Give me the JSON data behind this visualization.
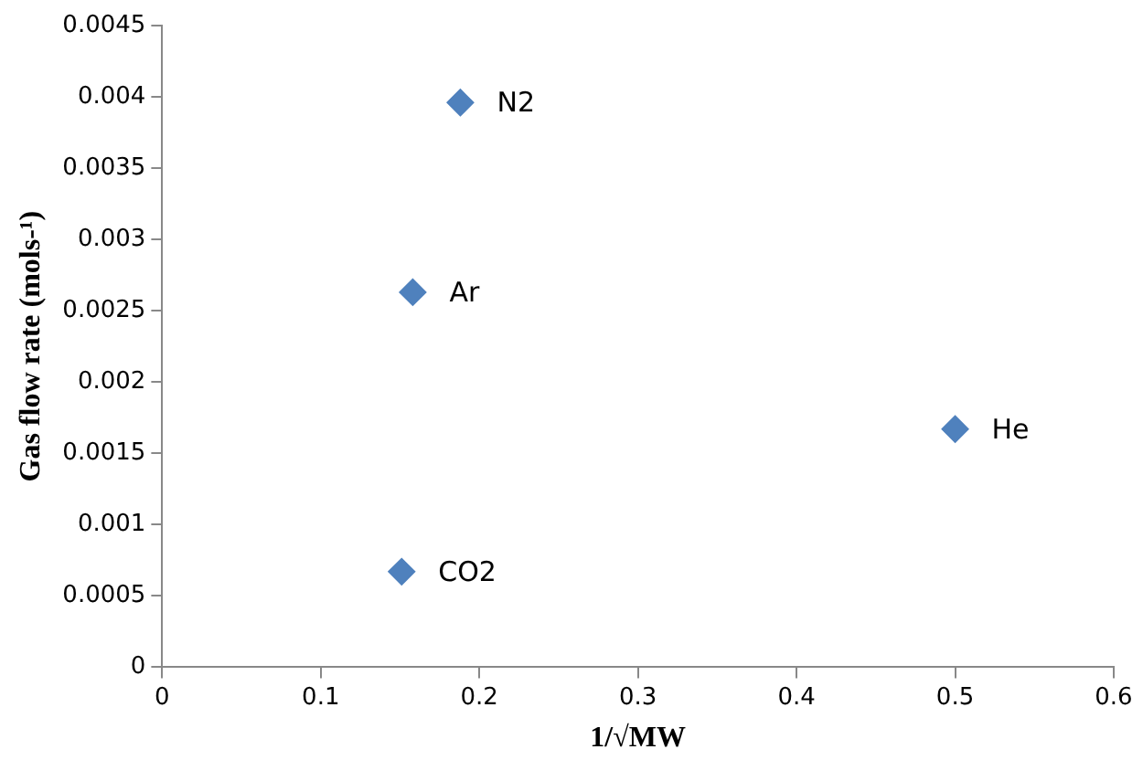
{
  "chart_data": {
    "type": "scatter",
    "xlabel": "1/√MW",
    "ylabel": "Gas flow rate (mols-¹)",
    "x": [
      0.188,
      0.158,
      0.5,
      0.151
    ],
    "series": [
      {
        "color": "#4f81bd",
        "values": [
          0.00396,
          0.00263,
          0.00167,
          0.00067
        ]
      }
    ],
    "annotations": [
      {
        "text": "N2",
        "x": 0.188,
        "y": 0.00396
      },
      {
        "text": "Ar",
        "x": 0.158,
        "y": 0.00263
      },
      {
        "text": "He",
        "x": 0.5,
        "y": 0.00167
      },
      {
        "text": "CO2",
        "x": 0.151,
        "y": 0.00067
      }
    ],
    "xlim": [
      0,
      0.6
    ],
    "xticks": [
      0,
      0.1,
      0.2,
      0.3,
      0.4,
      0.5,
      0.6
    ],
    "ylim": [
      0,
      0.0045
    ],
    "yticks": [
      0,
      0.0005,
      0.001,
      0.0015,
      0.002,
      0.0025,
      0.003,
      0.0035,
      0.004,
      0.0045
    ],
    "grid": false,
    "legend": false,
    "marker": "diamond"
  }
}
